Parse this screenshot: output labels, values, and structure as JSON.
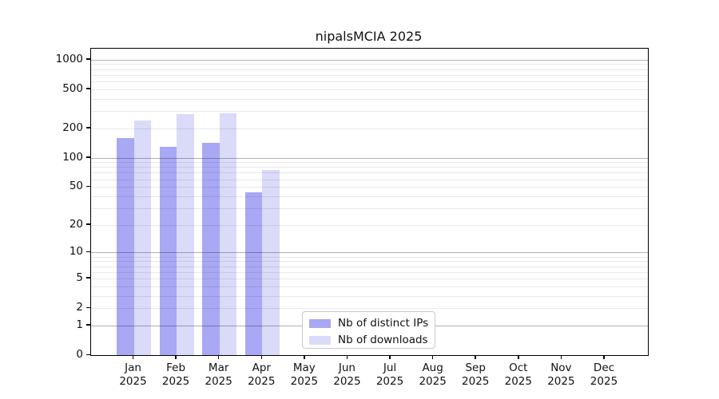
{
  "title": "nipalsMCIA 2025",
  "colors": {
    "bar_distinct_ips": "#a8a8f5",
    "bar_downloads": "#dadaf9",
    "grid_major": "rgba(0,0,0,0.30)",
    "grid_minor": "rgba(0,0,0,0.085)",
    "spine": "#000000",
    "text": "#111111",
    "legend_border": "#c9c9c9"
  },
  "chart_data": {
    "type": "bar",
    "title": "nipalsMCIA 2025",
    "categories": [
      "Jan 2025",
      "Feb 2025",
      "Mar 2025",
      "Apr 2025",
      "May 2025",
      "Jun 2025",
      "Jul 2025",
      "Aug 2025",
      "Sep 2025",
      "Oct 2025",
      "Nov 2025",
      "Dec 2025"
    ],
    "series": [
      {
        "name": "Nb of distinct IPs",
        "color": "#a8a8f5",
        "values": [
          160,
          130,
          143,
          44,
          null,
          null,
          null,
          null,
          null,
          null,
          null,
          null
        ]
      },
      {
        "name": "Nb of downloads",
        "color": "#dadaf9",
        "values": [
          240,
          280,
          285,
          75,
          null,
          null,
          null,
          null,
          null,
          null,
          null,
          null
        ]
      }
    ],
    "xlabel": "",
    "ylabel": "",
    "yscale": "log10(1+y) pseudo-log",
    "yticks": [
      0,
      1,
      2,
      5,
      10,
      20,
      50,
      100,
      200,
      500,
      1000
    ],
    "ytick_labels": [
      "0",
      "1",
      "2",
      "5",
      "10",
      "20",
      "50",
      "100",
      "200",
      "500",
      "1000"
    ],
    "ylim": [
      0,
      1290
    ],
    "grid": "horizontal; solid gray major lines at 1,10,100,1000; faint minor lines at 2-9 multiples of each decade",
    "legend_position": "inside plot, lower middle-right",
    "bars_per_month": "two side-by-side bars touching at month center: distinct IPs (left, darker), downloads (right, lighter)"
  },
  "legend": {
    "items": [
      {
        "label": "Nb of distinct IPs"
      },
      {
        "label": "Nb of downloads"
      }
    ]
  }
}
